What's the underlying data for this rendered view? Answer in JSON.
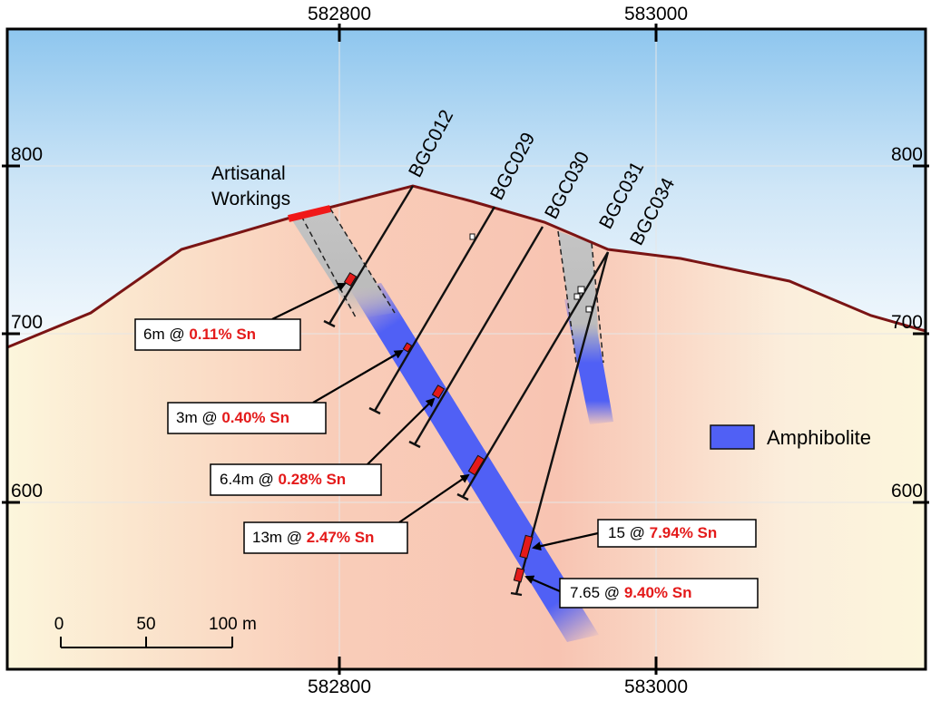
{
  "eastings": [
    "582800",
    "583000"
  ],
  "elevations": [
    "800",
    "700",
    "600"
  ],
  "drill_holes": [
    "BGC012",
    "BGC029",
    "BGC030",
    "BGC031",
    "BGC034"
  ],
  "artisanal_workings": [
    "Artisanal",
    "Workings"
  ],
  "intercepts": [
    {
      "interval": "6m @",
      "grade": "0.11% Sn"
    },
    {
      "interval": "3m @",
      "grade": "0.40% Sn"
    },
    {
      "interval": "6.4m @",
      "grade": "0.28% Sn"
    },
    {
      "interval": "13m @",
      "grade": "2.47% Sn"
    },
    {
      "interval": "15 @",
      "grade": "7.94% Sn"
    },
    {
      "interval": "7.65 @",
      "grade": "9.40% Sn"
    }
  ],
  "legend": [
    "Amphibolite"
  ],
  "scale_bar": [
    "0",
    "50",
    "100 m"
  ]
}
